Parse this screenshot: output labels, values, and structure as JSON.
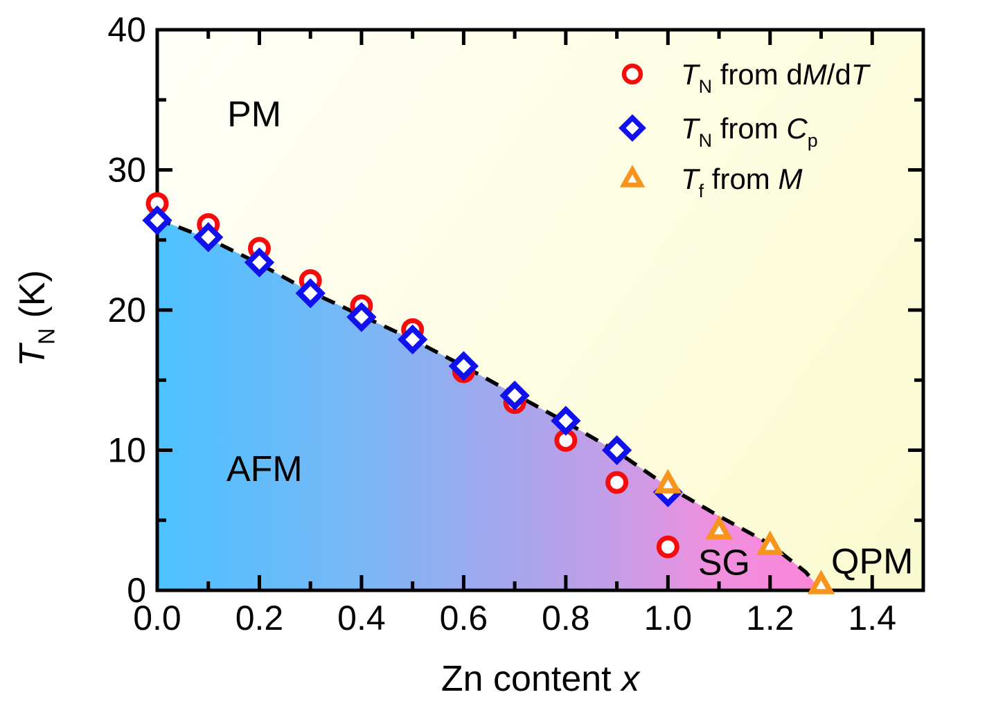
{
  "figure": {
    "description_labels": {
      "pm": "PM",
      "afm": "AFM",
      "sg": "SG",
      "qpm": "QPM"
    }
  },
  "chart_data": {
    "type": "scatter",
    "xlabel_parts": [
      {
        "t": "Zn content "
      },
      {
        "t": "x",
        "i": 1
      }
    ],
    "ylabel_parts": [
      {
        "t": "T",
        "i": 1
      },
      {
        "t": "N",
        "s": 1
      },
      {
        "t": " (K)"
      }
    ],
    "xlim": [
      0.0,
      1.5
    ],
    "ylim": [
      0,
      40
    ],
    "x_major_ticks": [
      0.0,
      0.2,
      0.4,
      0.6,
      0.8,
      1.0,
      1.2,
      1.4
    ],
    "x_major_labels": [
      "0.0",
      "0.2",
      "0.4",
      "0.6",
      "0.8",
      "1.0",
      "1.2",
      "1.4"
    ],
    "x_minor_ticks": [
      0.1,
      0.3,
      0.5,
      0.7,
      0.9,
      1.1,
      1.3
    ],
    "y_major_ticks": [
      0,
      10,
      20,
      30,
      40
    ],
    "y_major_labels": [
      "0",
      "10",
      "20",
      "30",
      "40"
    ],
    "y_minor_ticks": [
      5,
      15,
      25,
      35
    ],
    "grid": false,
    "legend_position": "top-right",
    "series": [
      {
        "id": "tn-dmdt",
        "marker": "circle",
        "color": "#F50D0D",
        "label_parts": [
          {
            "t": "T",
            "i": 1
          },
          {
            "t": "N",
            "s": 1
          },
          {
            "t": " from d"
          },
          {
            "t": "M",
            "i": 1
          },
          {
            "t": "/d"
          },
          {
            "t": "T",
            "i": 1
          }
        ],
        "points": [
          [
            0.0,
            27.6
          ],
          [
            0.1,
            26.1
          ],
          [
            0.2,
            24.4
          ],
          [
            0.3,
            22.1
          ],
          [
            0.4,
            20.3
          ],
          [
            0.5,
            18.6
          ],
          [
            0.6,
            15.6
          ],
          [
            0.7,
            13.4
          ],
          [
            0.8,
            10.7
          ],
          [
            0.9,
            7.7
          ],
          [
            1.0,
            3.1
          ]
        ]
      },
      {
        "id": "tn-cp",
        "marker": "diamond",
        "color": "#1111EE",
        "label_parts": [
          {
            "t": "T",
            "i": 1
          },
          {
            "t": "N",
            "s": 1
          },
          {
            "t": " from "
          },
          {
            "t": "C",
            "i": 1
          },
          {
            "t": "p",
            "s": 1
          }
        ],
        "points": [
          [
            0.0,
            26.4
          ],
          [
            0.1,
            25.2
          ],
          [
            0.2,
            23.4
          ],
          [
            0.3,
            21.2
          ],
          [
            0.4,
            19.5
          ],
          [
            0.5,
            17.9
          ],
          [
            0.6,
            16.0
          ],
          [
            0.7,
            13.9
          ],
          [
            0.8,
            12.1
          ],
          [
            0.9,
            10.0
          ],
          [
            1.0,
            7.0
          ]
        ]
      },
      {
        "id": "tf-m",
        "marker": "triangle",
        "color": "#F7941E",
        "label_parts": [
          {
            "t": "T",
            "i": 1
          },
          {
            "t": "f",
            "s": 1
          },
          {
            "t": "  from "
          },
          {
            "t": "M",
            "i": 1
          }
        ],
        "points": [
          [
            1.0,
            7.6
          ],
          [
            1.1,
            4.3
          ],
          [
            1.2,
            3.2
          ],
          [
            1.3,
            0.4
          ]
        ]
      }
    ],
    "phase_boundary": {
      "style": "dashed",
      "color": "#000000",
      "points": [
        [
          0.0,
          26.5
        ],
        [
          0.1,
          25.1
        ],
        [
          0.2,
          23.3
        ],
        [
          0.3,
          21.3
        ],
        [
          0.4,
          19.6
        ],
        [
          0.5,
          17.9
        ],
        [
          0.6,
          16.0
        ],
        [
          0.7,
          14.0
        ],
        [
          0.8,
          12.0
        ],
        [
          0.9,
          9.9
        ],
        [
          1.0,
          7.4
        ],
        [
          1.1,
          5.3
        ],
        [
          1.2,
          3.3
        ],
        [
          1.27,
          1.3
        ],
        [
          1.3,
          0.0
        ]
      ]
    },
    "regions": [
      {
        "label": "PM",
        "x": 0.19,
        "y": 34.0
      },
      {
        "label": "AFM",
        "x": 0.21,
        "y": 8.7
      },
      {
        "label": "SG",
        "x": 1.11,
        "y": 2.0
      },
      {
        "label": "QPM",
        "x": 1.4,
        "y": 2.1
      }
    ],
    "colors": {
      "afm_gradient": [
        [
          "0",
          "#4CC2FF"
        ],
        [
          "0.3",
          "#79B7F6"
        ],
        [
          "0.5",
          "#9FA8ED"
        ],
        [
          "0.7",
          "#C89CE7"
        ],
        [
          "0.84",
          "#F08FDE"
        ],
        [
          "1",
          "#FA85D8"
        ]
      ],
      "pm_gradient": [
        [
          "0",
          "#FFFFF9"
        ],
        [
          "0.5",
          "#FDFDE3"
        ],
        [
          "1",
          "#FAFAD0"
        ]
      ],
      "frame": "#000000"
    }
  }
}
